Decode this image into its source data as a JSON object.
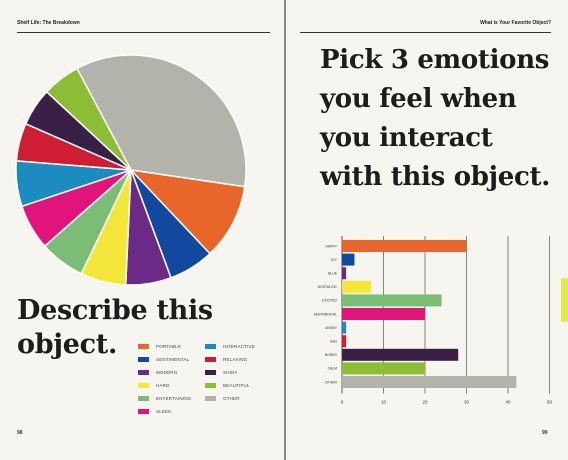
{
  "left_page": {
    "running_head": "Shelf Life: The Breakdown",
    "headline_lines": [
      "Describe this",
      "object."
    ],
    "folio": "98"
  },
  "right_page": {
    "running_head": "What is Your Favorite Object?",
    "headline_lines": [
      "Pick 3 emotions",
      "you feel when",
      "you interact",
      "with this object."
    ],
    "folio": "99"
  },
  "colors": {
    "accent_tab": "#e3e94b",
    "page": "#f6f5ef"
  },
  "chart_data": [
    {
      "type": "pie",
      "slices": [
        {
          "label": "OTHER",
          "value": 33,
          "color": "#b3b2ab"
        },
        {
          "label": "PORTABLE",
          "value": 10,
          "color": "#e8662a"
        },
        {
          "label": "SENTIMENTAL",
          "value": 6,
          "color": "#12499e"
        },
        {
          "label": "MODERN",
          "value": 6,
          "color": "#6a2a85"
        },
        {
          "label": "HARD",
          "value": 6,
          "color": "#f5e63a"
        },
        {
          "label": "ENTERTAINING",
          "value": 6,
          "color": "#7bbd74"
        },
        {
          "label": "SLEEK",
          "value": 6,
          "color": "#e0147a"
        },
        {
          "label": "INTERACTIVE",
          "value": 6,
          "color": "#1b8bc0"
        },
        {
          "label": "RELAXING",
          "value": 5,
          "color": "#cf1d33"
        },
        {
          "label": "SHINY",
          "value": 5,
          "color": "#3a1f46"
        },
        {
          "label": "BEAUTIFUL",
          "value": 5,
          "color": "#8bbd35"
        }
      ],
      "legend": [
        {
          "label": "PORTABLE",
          "color": "#e8662a"
        },
        {
          "label": "INTERACTIVE",
          "color": "#1b8bc0"
        },
        {
          "label": "SENTIMENTAL",
          "color": "#12499e"
        },
        {
          "label": "RELAXING",
          "color": "#cf1d33"
        },
        {
          "label": "MODERN",
          "color": "#6a2a85"
        },
        {
          "label": "SHINY",
          "color": "#3a1f46"
        },
        {
          "label": "HARD",
          "color": "#f5e63a"
        },
        {
          "label": "BEAUTIFUL",
          "color": "#8bbd35"
        },
        {
          "label": "ENTERTAINING",
          "color": "#7bbd74"
        },
        {
          "label": "OTHER",
          "color": "#b3b2ab"
        },
        {
          "label": "SLEEK",
          "color": "#e0147a"
        }
      ]
    },
    {
      "type": "bar",
      "orientation": "horizontal",
      "categories": [
        "HAPPY",
        "JOY",
        "BLUE",
        "NOSTALGIC",
        "EXCITED",
        "SENTIMENTAL",
        "ANGRY",
        "SAD",
        "BORED",
        "CALM",
        "OTHER"
      ],
      "values": [
        30,
        3,
        1,
        7,
        24,
        20,
        1,
        1,
        28,
        20,
        42
      ],
      "colors": [
        "#e8662a",
        "#12499e",
        "#6a2a85",
        "#f5e63a",
        "#7bbd74",
        "#e0147a",
        "#1b8bc0",
        "#cf1d33",
        "#3a1f46",
        "#8bbd35",
        "#b3b2ab"
      ],
      "xticks": [
        0,
        10,
        20,
        30,
        40,
        50
      ],
      "xlim": [
        0,
        50
      ],
      "grid": "vertical"
    }
  ]
}
